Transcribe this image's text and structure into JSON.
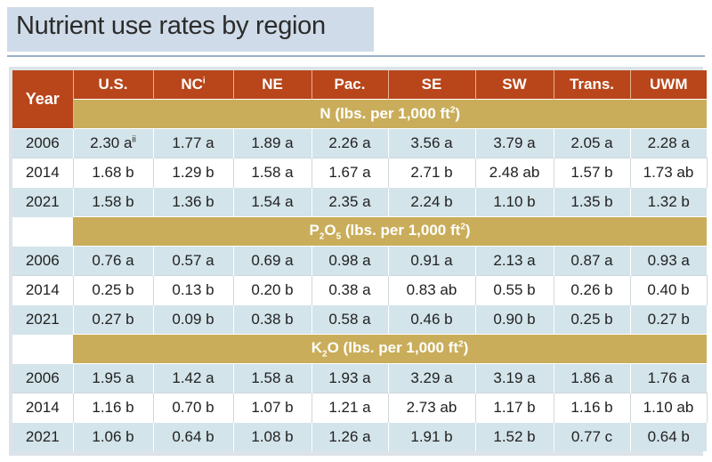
{
  "title": "Nutrient use rates by region",
  "header": {
    "year_label": "Year",
    "columns": [
      {
        "label": "U.S.",
        "sup": ""
      },
      {
        "label": "NC",
        "sup": "i"
      },
      {
        "label": "NE",
        "sup": ""
      },
      {
        "label": "Pac.",
        "sup": ""
      },
      {
        "label": "SE",
        "sup": ""
      },
      {
        "label": "SW",
        "sup": ""
      },
      {
        "label": "Trans.",
        "sup": ""
      },
      {
        "label": "UWM",
        "sup": ""
      }
    ]
  },
  "sections": [
    {
      "label_pre": "N (lbs. per 1,000 ft",
      "label_sub": "",
      "label_post": "",
      "label_sup": "2",
      "label_end": ")",
      "rows": [
        {
          "year": "2006",
          "values": [
            "2.30 a",
            "1.77 a",
            "1.89 a",
            "2.26 a",
            "3.56 a",
            "3.79 a",
            "2.05 a",
            "2.28 a"
          ],
          "first_sup": "ii"
        },
        {
          "year": "2014",
          "values": [
            "1.68 b",
            "1.29 b",
            "1.58 a",
            "1.67 a",
            "2.71 b",
            "2.48 ab",
            "1.57 b",
            "1.73 ab"
          ],
          "first_sup": ""
        },
        {
          "year": "2021",
          "values": [
            "1.58 b",
            "1.36 b",
            "1.54 a",
            "2.35 a",
            "2.24 b",
            "1.10 b",
            "1.35 b",
            "1.32 b"
          ],
          "first_sup": ""
        }
      ]
    },
    {
      "label_pre": "P",
      "label_sub": "2",
      "label_post": "O",
      "label_sub2": "5",
      "label_rest": " (lbs. per 1,000 ft",
      "label_sup": "2",
      "label_end": ")",
      "rows": [
        {
          "year": "2006",
          "values": [
            "0.76 a",
            "0.57 a",
            "0.69 a",
            "0.98 a",
            "0.91 a",
            "2.13 a",
            "0.87 a",
            "0.93 a"
          ],
          "first_sup": ""
        },
        {
          "year": "2014",
          "values": [
            "0.25 b",
            "0.13 b",
            "0.20 b",
            "0.38 a",
            "0.83 ab",
            "0.55 b",
            "0.26 b",
            "0.40 b"
          ],
          "first_sup": ""
        },
        {
          "year": "2021",
          "values": [
            "0.27 b",
            "0.09 b",
            "0.38 b",
            "0.58 a",
            "0.46 b",
            "0.90 b",
            "0.25 b",
            "0.27 b"
          ],
          "first_sup": ""
        }
      ]
    },
    {
      "label_pre": "K",
      "label_sub": "2",
      "label_post": "O (lbs. per 1,000 ft",
      "label_sup": "2",
      "label_end": ")",
      "rows": [
        {
          "year": "2006",
          "values": [
            "1.95 a",
            "1.42 a",
            "1.58 a",
            "1.93 a",
            "3.29 a",
            "3.19 a",
            "1.86 a",
            "1.76 a"
          ],
          "first_sup": ""
        },
        {
          "year": "2014",
          "values": [
            "1.16 b",
            "0.70 b",
            "1.07 b",
            "1.21 a",
            "2.73 ab",
            "1.17 b",
            "1.16 b",
            "1.10 ab"
          ],
          "first_sup": ""
        },
        {
          "year": "2021",
          "values": [
            "1.06 b",
            "0.64 b",
            "1.08 b",
            "1.26 a",
            "1.91 b",
            "1.52 b",
            "0.77 c",
            "0.64 b"
          ],
          "first_sup": ""
        }
      ]
    }
  ]
}
